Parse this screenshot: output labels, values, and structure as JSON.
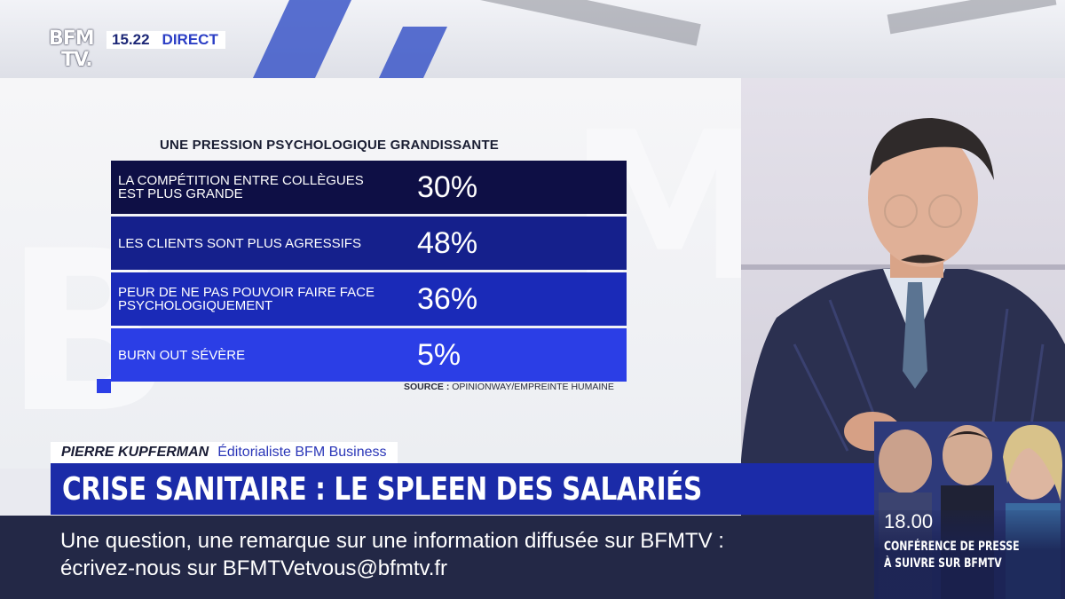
{
  "channel": {
    "logo_line1": "BFM",
    "logo_line2": "TV.",
    "time": "15.22",
    "live_label": "DIRECT"
  },
  "infographic": {
    "title": "UNE PRESSION PSYCHOLOGIQUE GRANDISSANTE",
    "rows": [
      {
        "label": "LA COMPÉTITION ENTRE COLLÈGUES EST PLUS GRANDE",
        "value": "30%",
        "color": "#0e0f45"
      },
      {
        "label": "LES CLIENTS SONT PLUS AGRESSIFS",
        "value": "48%",
        "color": "#15208c"
      },
      {
        "label": "PEUR DE NE PAS POUVOIR FAIRE FACE PSYCHOLOGIQUEMENT",
        "value": "36%",
        "color": "#1a2ab8"
      },
      {
        "label": "BURN OUT SÉVÈRE",
        "value": "5%",
        "color": "#2b3ee6"
      }
    ],
    "source_label": "SOURCE :",
    "source_value": "OPINIONWAY/EMPREINTE HUMAINE"
  },
  "lower_third": {
    "guest_name": "PIERRE KUPFERMAN",
    "guest_role": "Éditorialiste BFM Business",
    "headline": "CRISE SANITAIRE : LE SPLEEN DES SALARIÉS"
  },
  "ticker": {
    "line1": "Une question, une remarque sur une information diffusée sur BFMTV :",
    "line2": "écrivez-nous sur BFMTVetvous@bfmtv.fr"
  },
  "promo": {
    "time": "18.00",
    "line1": "CONFÉRENCE DE PRESSE",
    "line2": "À SUIVRE SUR BFMTV"
  },
  "colors": {
    "brand_blue": "#1b2ba8",
    "accent_blue": "#2b3ee6",
    "ticker_bg": "#232846"
  }
}
